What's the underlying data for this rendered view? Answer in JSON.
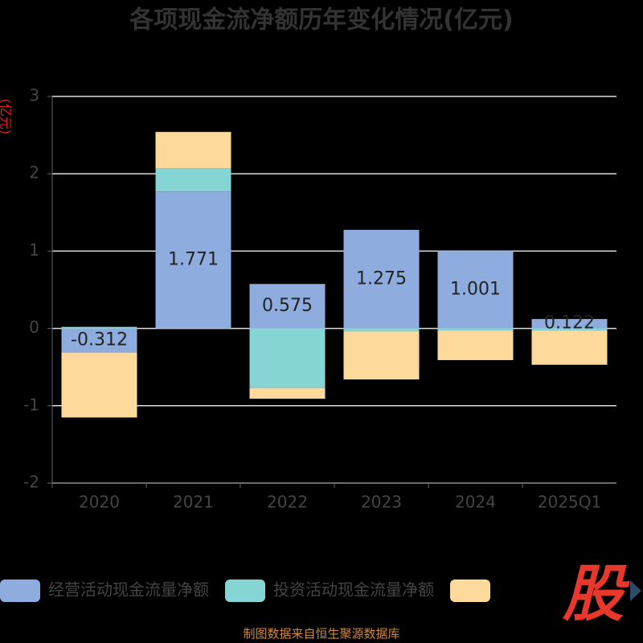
{
  "chart_data": {
    "type": "stacked-bar",
    "title": "各项现金流净额历年变化情况(亿元)",
    "y_label": "(亿元)",
    "source": "制图数据来自恒生聚源数据库",
    "watermark": "股",
    "categories": [
      "2020",
      "2021",
      "2022",
      "2023",
      "2024",
      "2025Q1"
    ],
    "series": [
      {
        "name": "经营活动现金流量净额",
        "color": "#8eacde",
        "values": [
          -0.312,
          1.771,
          0.575,
          1.275,
          1.001,
          0.122
        ]
      },
      {
        "name": "投资活动现金流量净额",
        "color": "#86d5d5",
        "values": [
          0.02,
          0.3,
          -0.77,
          -0.04,
          -0.03,
          -0.03
        ]
      },
      {
        "color": "#fdd99b",
        "values": [
          -0.84,
          0.47,
          -0.14,
          -0.62,
          -0.38,
          -0.44
        ]
      }
    ],
    "label_series": 0,
    "ylim": [
      -2,
      3
    ],
    "yticks": [
      -2,
      -1,
      0,
      1,
      2,
      3
    ],
    "grid": true
  }
}
